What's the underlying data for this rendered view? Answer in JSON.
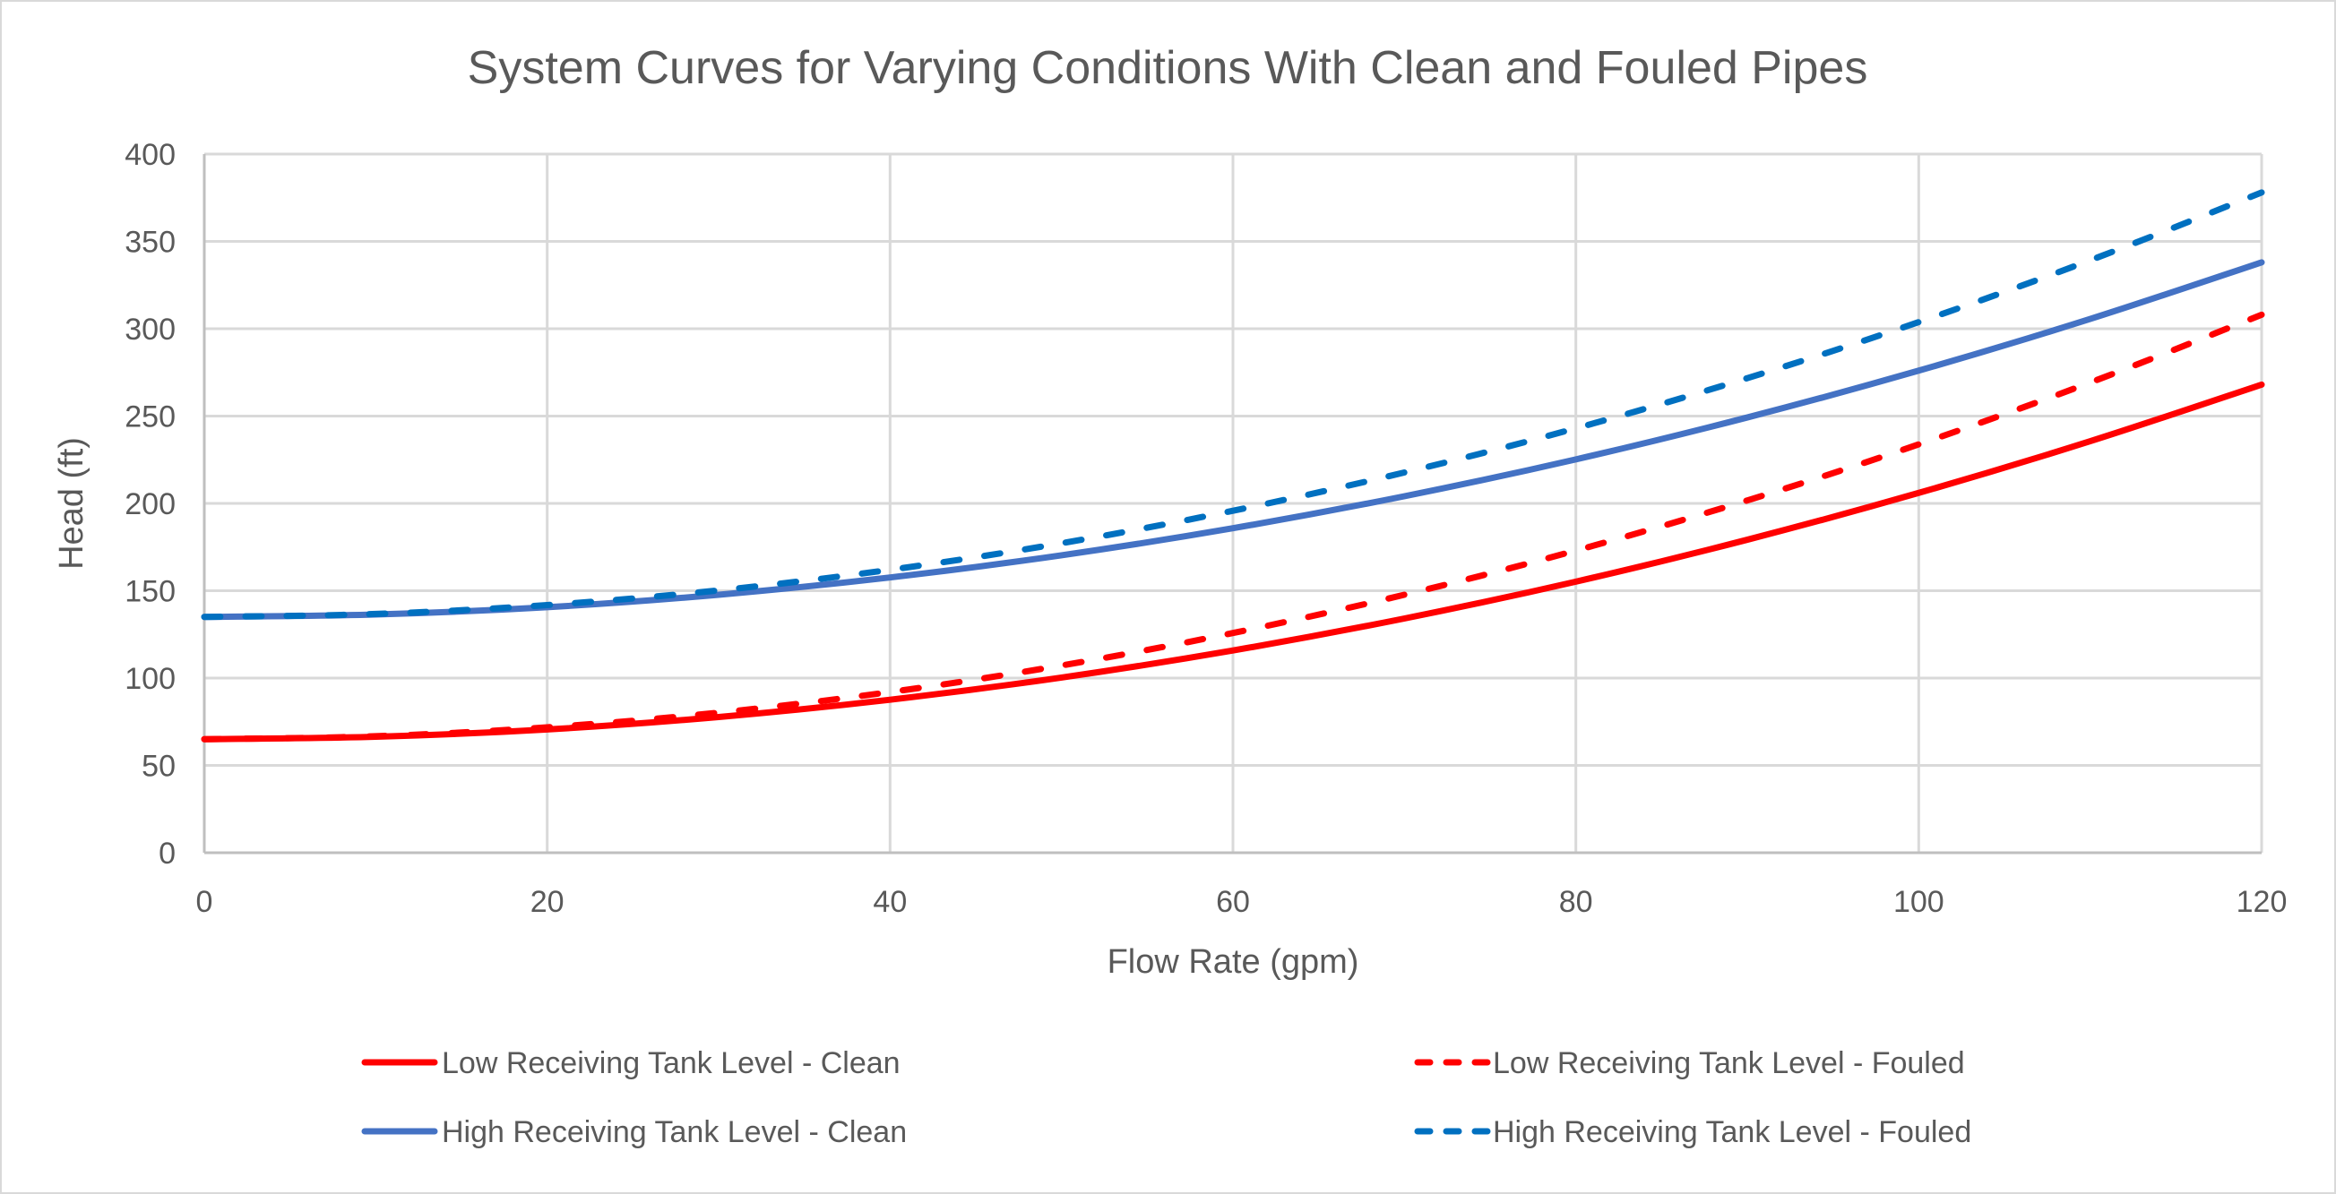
{
  "chart_data": {
    "type": "line",
    "title": "System Curves for Varying Conditions With Clean and Fouled Pipes",
    "xlabel": "Flow Rate (gpm)",
    "ylabel": "Head (ft)",
    "xlim": [
      0,
      120
    ],
    "ylim": [
      0,
      400
    ],
    "xticks": [
      0,
      20,
      40,
      60,
      80,
      100,
      120
    ],
    "yticks": [
      0,
      50,
      100,
      150,
      200,
      250,
      300,
      350,
      400
    ],
    "grid": true,
    "legend_position": "bottom",
    "x": [
      0,
      10,
      20,
      30,
      40,
      50,
      60,
      70,
      80,
      90,
      100,
      110,
      120
    ],
    "series": [
      {
        "name": "Low Receiving Tank Level - Clean",
        "color": "#ff0000",
        "style": "solid",
        "values": [
          65,
          66.4,
          70.6,
          77.7,
          87.6,
          100.3,
          115.8,
          134.1,
          155.2,
          179.2,
          206.0,
          235.6,
          268
        ]
      },
      {
        "name": "Low Receiving Tank Level - Fouled",
        "color": "#ff0000",
        "style": "dashed",
        "values": [
          65,
          66.7,
          71.8,
          80.2,
          92.0,
          107.2,
          125.8,
          147.7,
          173.0,
          201.7,
          233.8,
          269.2,
          308
        ]
      },
      {
        "name": "High Receiving Tank Level - Clean",
        "color": "#4472c4",
        "style": "solid",
        "values": [
          135,
          136.4,
          140.6,
          147.7,
          157.6,
          170.3,
          185.8,
          204.1,
          225.2,
          249.2,
          276.0,
          305.6,
          338
        ]
      },
      {
        "name": "High Receiving Tank Level - Fouled",
        "color": "#0070c0",
        "style": "dashed",
        "values": [
          135,
          136.7,
          141.8,
          150.2,
          162.0,
          177.2,
          195.8,
          217.7,
          243.0,
          271.7,
          303.8,
          339.2,
          378
        ]
      }
    ]
  }
}
